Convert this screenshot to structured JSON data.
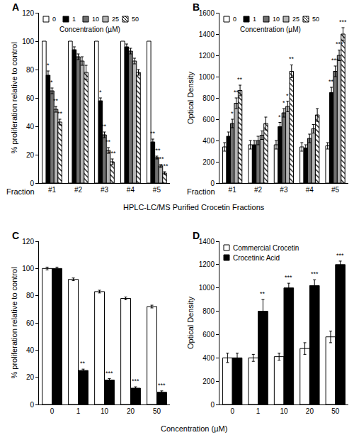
{
  "chart_data": [
    {
      "type": "bar",
      "panel": "A",
      "categories": [
        "#1",
        "#2",
        "#3",
        "#4",
        "#5"
      ],
      "category_label": "Fraction",
      "xlabel": "HPLC-LC/MS Purified Crocetin Fractions",
      "ylabel": "% proliferation relative to control",
      "ylim": [
        0,
        120
      ],
      "yticks": [
        0,
        20,
        40,
        60,
        80,
        100,
        120
      ],
      "grid": false,
      "legend": "upper left",
      "legend_title": "Concentration (µM)",
      "series": [
        {
          "name": "0",
          "color": "#ffffff",
          "values": [
            100,
            100,
            100,
            100,
            100
          ]
        },
        {
          "name": "1",
          "color": "#000000",
          "values": [
            76,
            94,
            58,
            96,
            29
          ],
          "errors": [
            3,
            2,
            2,
            2,
            2
          ],
          "significance": [
            "*",
            null,
            "*",
            null,
            "**"
          ]
        },
        {
          "name": "10",
          "color": "#707070",
          "values": [
            65,
            89,
            34,
            93,
            18
          ],
          "errors": [
            2,
            2,
            2,
            2,
            1
          ],
          "significance": [
            "*",
            null,
            "**",
            null,
            "***"
          ]
        },
        {
          "name": "25",
          "color": "#b4b4b4",
          "values": [
            52,
            86,
            23,
            86,
            12
          ],
          "errors": [
            2,
            3,
            2,
            2,
            1
          ],
          "significance": [
            "**",
            null,
            "**",
            null,
            "***"
          ]
        },
        {
          "name": "50",
          "color": "#ffffff",
          "marker": "hatch",
          "values": [
            43,
            78,
            15,
            78,
            7
          ],
          "errors": [
            2,
            5,
            2,
            2,
            1
          ],
          "significance": [
            "**",
            null,
            "***",
            null,
            "***"
          ]
        }
      ]
    },
    {
      "type": "bar",
      "panel": "B",
      "categories": [
        "#1",
        "#2",
        "#3",
        "#4",
        "#5"
      ],
      "category_label": "Fraction",
      "ylabel": "Optical Density",
      "ylim": [
        0,
        1600
      ],
      "yticks": [
        0,
        200,
        400,
        600,
        800,
        1000,
        1200,
        1400,
        1600
      ],
      "grid": false,
      "legend": "upper left",
      "legend_title": "Concentration (µM)",
      "series": [
        {
          "name": "0",
          "color": "#ffffff",
          "values": [
            340,
            360,
            360,
            340,
            350
          ],
          "errors": [
            40,
            40,
            40,
            40,
            30
          ]
        },
        {
          "name": "1",
          "color": "#000000",
          "values": [
            440,
            360,
            530,
            330,
            850
          ],
          "errors": [
            40,
            40,
            40,
            30,
            50
          ],
          "significance": [
            null,
            null,
            "*",
            null,
            "**"
          ]
        },
        {
          "name": "10",
          "color": "#707070",
          "values": [
            560,
            400,
            660,
            420,
            1050
          ],
          "errors": [
            40,
            40,
            40,
            40,
            50
          ],
          "significance": [
            "*",
            null,
            "*",
            null,
            "***"
          ]
        },
        {
          "name": "25",
          "color": "#b4b4b4",
          "values": [
            750,
            450,
            720,
            510,
            1200
          ],
          "errors": [
            50,
            40,
            50,
            40,
            50
          ],
          "significance": [
            "**",
            null,
            "*",
            null,
            "***"
          ]
        },
        {
          "name": "50",
          "color": "#ffffff",
          "marker": "hatch",
          "values": [
            870,
            560,
            1050,
            640,
            1400
          ],
          "errors": [
            50,
            60,
            60,
            60,
            60
          ],
          "significance": [
            "**",
            null,
            "**",
            null,
            "***"
          ]
        }
      ]
    },
    {
      "type": "bar",
      "panel": "C",
      "categories": [
        "0",
        "1",
        "10",
        "20",
        "50"
      ],
      "xlabel": "Concentration (µM)",
      "ylabel": "% proliferation relative to control",
      "ylim": [
        0,
        120
      ],
      "yticks": [
        0,
        20,
        40,
        60,
        80,
        100,
        120
      ],
      "grid": false,
      "series": [
        {
          "color": "#ffffff",
          "values": [
            100,
            92,
            83,
            78,
            72
          ],
          "errors": [
            1,
            1,
            1,
            1,
            1
          ]
        },
        {
          "color": "#000000",
          "values": [
            100,
            25,
            18,
            12,
            9
          ],
          "errors": [
            1,
            1,
            1,
            1,
            1
          ],
          "significance": [
            null,
            "**",
            "***",
            "***",
            "***"
          ]
        }
      ]
    },
    {
      "type": "bar",
      "panel": "D",
      "categories": [
        "0",
        "1",
        "10",
        "20",
        "50"
      ],
      "ylabel": "Optical Density",
      "ylim": [
        0,
        1400
      ],
      "yticks": [
        0,
        200,
        400,
        600,
        800,
        1000,
        1200,
        1400
      ],
      "grid": false,
      "legend": "upper left",
      "series": [
        {
          "name": "Commercial Crocetin",
          "color": "#ffffff",
          "values": [
            400,
            400,
            410,
            480,
            580
          ],
          "errors": [
            40,
            30,
            30,
            50,
            50
          ]
        },
        {
          "name": "Crocetinic Acid",
          "color": "#000000",
          "values": [
            400,
            800,
            1000,
            1020,
            1200
          ],
          "errors": [
            40,
            100,
            40,
            50,
            30
          ],
          "significance": [
            null,
            "**",
            "***",
            "***",
            "***"
          ]
        }
      ]
    }
  ]
}
